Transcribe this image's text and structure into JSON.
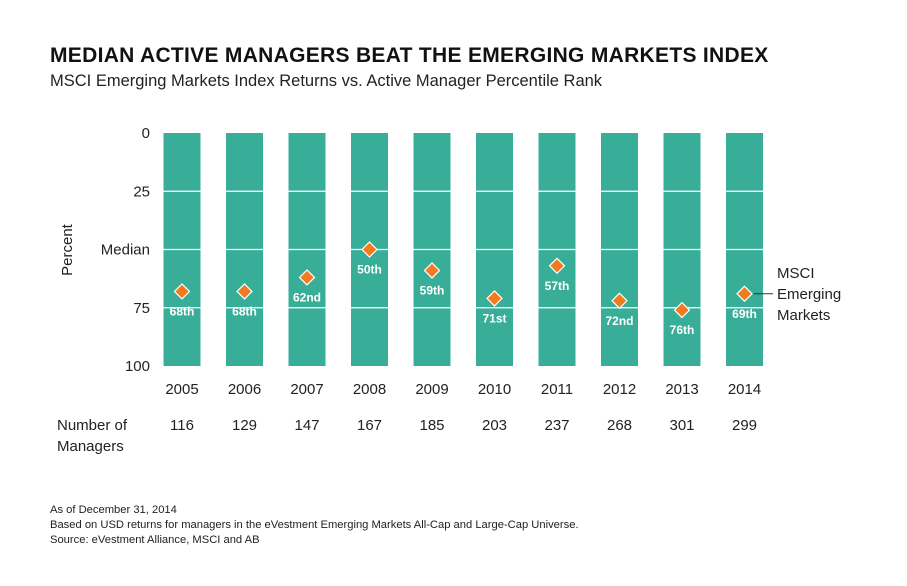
{
  "title": "MEDIAN ACTIVE MANAGERS BEAT THE EMERGING MARKETS INDEX",
  "subtitle": "MSCI Emerging Markets Index Returns vs. Active Manager Percentile Rank",
  "colors": {
    "bar": "#38AE98",
    "marker": "#F47A1F",
    "marker_stroke": "#ffffff",
    "grid": "#ffffff",
    "label_text": "#ffffff"
  },
  "chart_data": {
    "type": "scatter",
    "categories": [
      "2005",
      "2006",
      "2007",
      "2008",
      "2009",
      "2010",
      "2011",
      "2012",
      "2013",
      "2014"
    ],
    "series": [
      {
        "name": "MSCI Emerging Markets",
        "values": [
          68,
          68,
          62,
          50,
          59,
          71,
          57,
          72,
          76,
          69
        ],
        "point_labels": [
          "68th",
          "68th",
          "62nd",
          "50th",
          "59th",
          "71st",
          "57th",
          "72nd",
          "76th",
          "69th"
        ]
      }
    ],
    "ylabel": "Percent",
    "ylim": [
      0,
      100
    ],
    "y_reversed": true,
    "y_ticks": [
      "0",
      "25",
      "Median",
      "75",
      "100"
    ],
    "y_tick_values": [
      0,
      25,
      50,
      75,
      100
    ],
    "background_bars": true,
    "grid": true,
    "legend_placement": "right",
    "managers_label_line1": "Number of",
    "managers_label_line2": "Managers",
    "number_of_managers": [
      "116",
      "129",
      "147",
      "167",
      "185",
      "203",
      "237",
      "268",
      "301",
      "299"
    ]
  },
  "footnotes": [
    "As of December 31, 2014",
    "Based on USD returns for managers in the eVestment Emerging Markets All-Cap and Large-Cap Universe.",
    "Source: eVestment Alliance, MSCI and AB"
  ]
}
